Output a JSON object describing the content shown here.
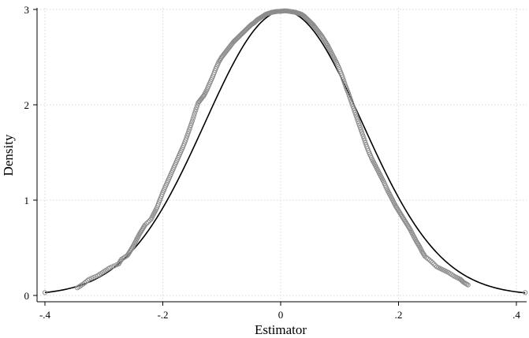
{
  "chart_data": {
    "type": "scatter",
    "title": "",
    "xlabel": "Estimator",
    "ylabel": "Density",
    "xlim": [
      -0.41,
      0.42
    ],
    "ylim": [
      0,
      3
    ],
    "xticks": [
      -0.4,
      -0.2,
      0,
      0.2,
      0.4
    ],
    "xtick_labels": [
      "-.4",
      "-.2",
      "0",
      ".2",
      ".4"
    ],
    "yticks": [
      0,
      1,
      2,
      3
    ],
    "ytick_labels": [
      "0",
      "1",
      "2",
      "3"
    ],
    "grid": true,
    "legend": "none",
    "series": [
      {
        "kind": "line",
        "color": "#000000",
        "curve": "normal-density",
        "mean": 0.005,
        "sd": 0.1335,
        "x_range": [
          -0.4,
          0.415
        ]
      },
      {
        "kind": "scatter",
        "color": "#8c8c8c",
        "marker": "open-circle",
        "points": [
          [
            -0.4,
            0.03
          ],
          [
            -0.345,
            0.08
          ],
          [
            -0.335,
            0.12
          ],
          [
            -0.325,
            0.17
          ],
          [
            -0.31,
            0.21
          ],
          [
            -0.3,
            0.25
          ],
          [
            -0.29,
            0.29
          ],
          [
            -0.275,
            0.33
          ],
          [
            -0.27,
            0.38
          ],
          [
            -0.26,
            0.42
          ],
          [
            -0.255,
            0.47
          ],
          [
            -0.25,
            0.52
          ],
          [
            -0.245,
            0.58
          ],
          [
            -0.24,
            0.64
          ],
          [
            -0.235,
            0.69
          ],
          [
            -0.23,
            0.74
          ],
          [
            -0.22,
            0.8
          ],
          [
            -0.215,
            0.86
          ],
          [
            -0.21,
            0.92
          ],
          [
            -0.205,
            1.0
          ],
          [
            -0.2,
            1.08
          ],
          [
            -0.195,
            1.15
          ],
          [
            -0.19,
            1.22
          ],
          [
            -0.185,
            1.29
          ],
          [
            -0.18,
            1.36
          ],
          [
            -0.175,
            1.43
          ],
          [
            -0.17,
            1.5
          ],
          [
            -0.165,
            1.57
          ],
          [
            -0.16,
            1.65
          ],
          [
            -0.155,
            1.74
          ],
          [
            -0.15,
            1.83
          ],
          [
            -0.145,
            1.93
          ],
          [
            -0.14,
            2.02
          ],
          [
            -0.135,
            2.06
          ],
          [
            -0.13,
            2.1
          ],
          [
            -0.125,
            2.16
          ],
          [
            -0.12,
            2.23
          ],
          [
            -0.115,
            2.3
          ],
          [
            -0.11,
            2.38
          ],
          [
            -0.105,
            2.45
          ],
          [
            -0.1,
            2.5
          ],
          [
            -0.095,
            2.54
          ],
          [
            -0.09,
            2.58
          ],
          [
            -0.085,
            2.62
          ],
          [
            -0.08,
            2.66
          ],
          [
            -0.075,
            2.69
          ],
          [
            -0.07,
            2.72
          ],
          [
            -0.065,
            2.75
          ],
          [
            -0.06,
            2.78
          ],
          [
            -0.055,
            2.81
          ],
          [
            -0.05,
            2.84
          ],
          [
            -0.045,
            2.86
          ],
          [
            -0.04,
            2.89
          ],
          [
            -0.035,
            2.91
          ],
          [
            -0.03,
            2.93
          ],
          [
            -0.025,
            2.95
          ],
          [
            -0.02,
            2.96
          ],
          [
            -0.015,
            2.97
          ],
          [
            -0.01,
            2.975
          ],
          [
            -0.005,
            2.98
          ],
          [
            0.0,
            2.98
          ],
          [
            0.005,
            2.985
          ],
          [
            0.01,
            2.985
          ],
          [
            0.015,
            2.98
          ],
          [
            0.02,
            2.975
          ],
          [
            0.025,
            2.97
          ],
          [
            0.03,
            2.96
          ],
          [
            0.035,
            2.95
          ],
          [
            0.04,
            2.93
          ],
          [
            0.045,
            2.9
          ],
          [
            0.05,
            2.87
          ],
          [
            0.055,
            2.84
          ],
          [
            0.06,
            2.8
          ],
          [
            0.065,
            2.76
          ],
          [
            0.07,
            2.72
          ],
          [
            0.075,
            2.67
          ],
          [
            0.08,
            2.62
          ],
          [
            0.085,
            2.56
          ],
          [
            0.09,
            2.5
          ],
          [
            0.095,
            2.44
          ],
          [
            0.1,
            2.37
          ],
          [
            0.105,
            2.29
          ],
          [
            0.11,
            2.2
          ],
          [
            0.115,
            2.12
          ],
          [
            0.12,
            2.03
          ],
          [
            0.125,
            1.94
          ],
          [
            0.13,
            1.85
          ],
          [
            0.135,
            1.76
          ],
          [
            0.14,
            1.67
          ],
          [
            0.145,
            1.58
          ],
          [
            0.15,
            1.5
          ],
          [
            0.155,
            1.43
          ],
          [
            0.16,
            1.37
          ],
          [
            0.165,
            1.31
          ],
          [
            0.17,
            1.25
          ],
          [
            0.175,
            1.19
          ],
          [
            0.18,
            1.12
          ],
          [
            0.185,
            1.06
          ],
          [
            0.19,
            1.0
          ],
          [
            0.195,
            0.94
          ],
          [
            0.2,
            0.89
          ],
          [
            0.205,
            0.84
          ],
          [
            0.21,
            0.79
          ],
          [
            0.215,
            0.74
          ],
          [
            0.22,
            0.69
          ],
          [
            0.225,
            0.63
          ],
          [
            0.23,
            0.57
          ],
          [
            0.235,
            0.52
          ],
          [
            0.24,
            0.46
          ],
          [
            0.245,
            0.41
          ],
          [
            0.255,
            0.36
          ],
          [
            0.265,
            0.3
          ],
          [
            0.275,
            0.27
          ],
          [
            0.285,
            0.24
          ],
          [
            0.295,
            0.2
          ],
          [
            0.305,
            0.17
          ],
          [
            0.31,
            0.14
          ],
          [
            0.318,
            0.11
          ],
          [
            0.415,
            0.03
          ]
        ]
      }
    ]
  }
}
